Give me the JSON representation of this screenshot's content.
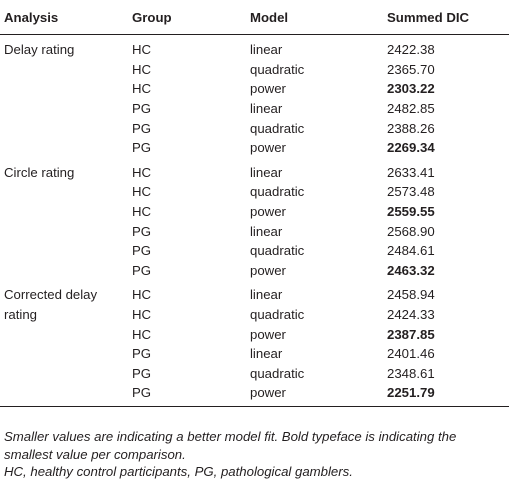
{
  "table": {
    "headers": [
      "Analysis",
      "Group",
      "Model",
      "Summed DIC"
    ],
    "sections": [
      {
        "analysis": "Delay rating",
        "rows": [
          {
            "group": "HC",
            "model": "linear",
            "dic": "2422.38",
            "best": false
          },
          {
            "group": "HC",
            "model": "quadratic",
            "dic": "2365.70",
            "best": false
          },
          {
            "group": "HC",
            "model": "power",
            "dic": "2303.22",
            "best": true
          },
          {
            "group": "PG",
            "model": "linear",
            "dic": "2482.85",
            "best": false
          },
          {
            "group": "PG",
            "model": "quadratic",
            "dic": "2388.26",
            "best": false
          },
          {
            "group": "PG",
            "model": "power",
            "dic": "2269.34",
            "best": true
          }
        ]
      },
      {
        "analysis": "Circle rating",
        "rows": [
          {
            "group": "HC",
            "model": "linear",
            "dic": "2633.41",
            "best": false
          },
          {
            "group": "HC",
            "model": "quadratic",
            "dic": "2573.48",
            "best": false
          },
          {
            "group": "HC",
            "model": "power",
            "dic": "2559.55",
            "best": true
          },
          {
            "group": "PG",
            "model": "linear",
            "dic": "2568.90",
            "best": false
          },
          {
            "group": "PG",
            "model": "quadratic",
            "dic": "2484.61",
            "best": false
          },
          {
            "group": "PG",
            "model": "power",
            "dic": "2463.32",
            "best": true
          }
        ]
      },
      {
        "analysis": "Corrected delay rating",
        "rows": [
          {
            "group": "HC",
            "model": "linear",
            "dic": "2458.94",
            "best": false
          },
          {
            "group": "HC",
            "model": "quadratic",
            "dic": "2424.33",
            "best": false
          },
          {
            "group": "HC",
            "model": "power",
            "dic": "2387.85",
            "best": true
          },
          {
            "group": "PG",
            "model": "linear",
            "dic": "2401.46",
            "best": false
          },
          {
            "group": "PG",
            "model": "quadratic",
            "dic": "2348.61",
            "best": false
          },
          {
            "group": "PG",
            "model": "power",
            "dic": "2251.79",
            "best": true
          }
        ]
      }
    ]
  },
  "footnotes": [
    "Smaller values are indicating a better model fit. Bold typeface is indicating the smallest value per comparison.",
    "HC, healthy control participants, PG, pathological gamblers."
  ]
}
